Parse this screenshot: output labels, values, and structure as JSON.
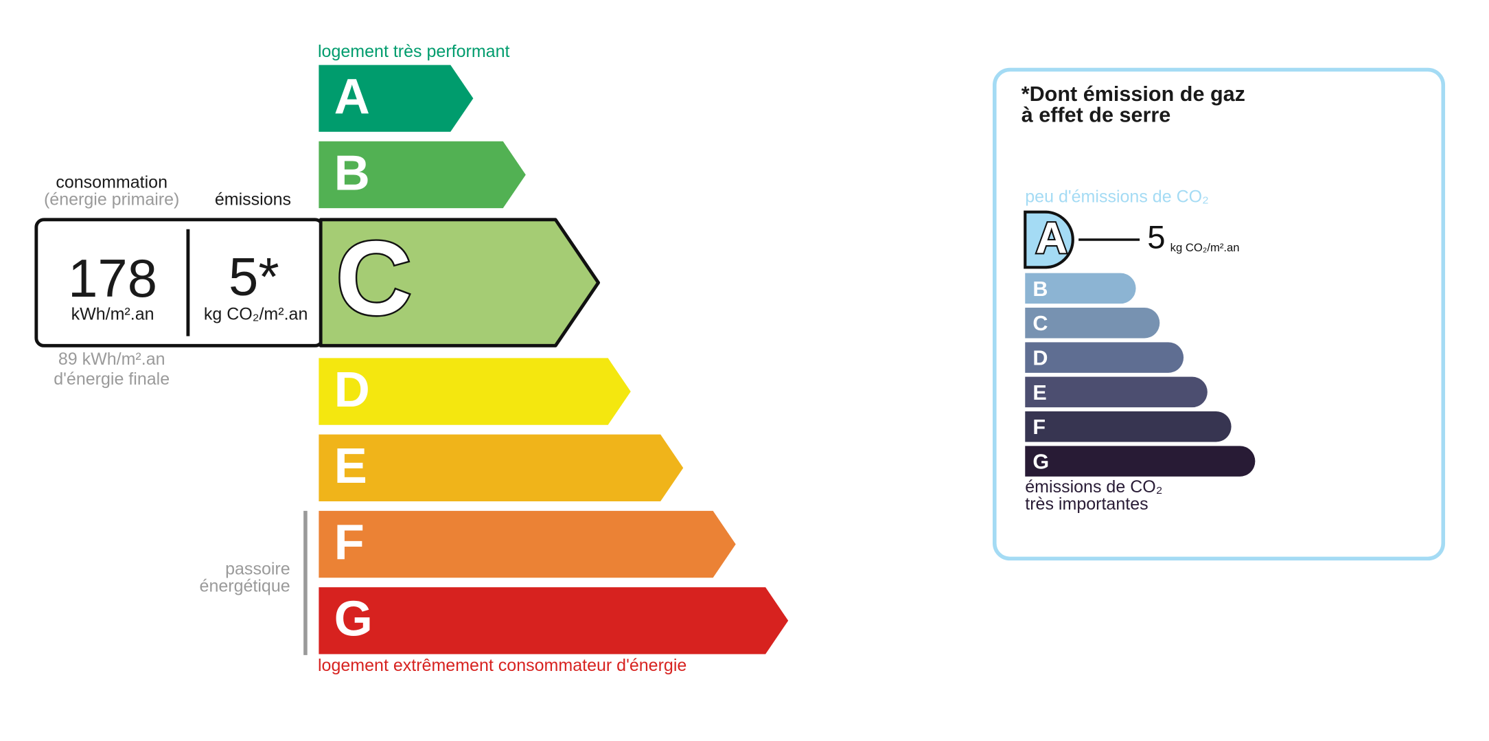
{
  "energy": {
    "top_label": "logement très performant",
    "bottom_label": "logement extrêmement consommateur d'énergie",
    "selected": "C",
    "classes": [
      {
        "letter": "A",
        "color": "#009c6d"
      },
      {
        "letter": "B",
        "color": "#52b153"
      },
      {
        "letter": "C",
        "color": "#a5cc74"
      },
      {
        "letter": "D",
        "color": "#f4e70f"
      },
      {
        "letter": "E",
        "color": "#f0b41a"
      },
      {
        "letter": "F",
        "color": "#eb8235"
      },
      {
        "letter": "G",
        "color": "#d7221f"
      }
    ],
    "consumption_title": "consommation",
    "consumption_subtitle": "(énergie primaire)",
    "emissions_title": "émissions",
    "consumption_value": "178",
    "consumption_unit": "kWh/m².an",
    "emissions_value": "5*",
    "emissions_unit": "kg CO₂/m².an",
    "final_energy": [
      "89 kWh/m².an",
      "d'énergie finale"
    ],
    "passoire": [
      "passoire",
      "énergétique"
    ]
  },
  "ghg": {
    "title": [
      "*Dont émission de gaz",
      "à effet de serre"
    ],
    "top_label": "peu d'émissions de CO₂",
    "bottom_label": [
      "émissions de CO₂",
      "très importantes"
    ],
    "selected": "A",
    "value": "5",
    "unit": "kg CO₂/m².an",
    "classes": [
      {
        "letter": "A",
        "color": "#a4dbf4"
      },
      {
        "letter": "B",
        "color": "#8cb4d3"
      },
      {
        "letter": "C",
        "color": "#7792b1"
      },
      {
        "letter": "D",
        "color": "#5f6e92"
      },
      {
        "letter": "E",
        "color": "#4c4e70"
      },
      {
        "letter": "F",
        "color": "#373551"
      },
      {
        "letter": "G",
        "color": "#281b35"
      }
    ]
  }
}
